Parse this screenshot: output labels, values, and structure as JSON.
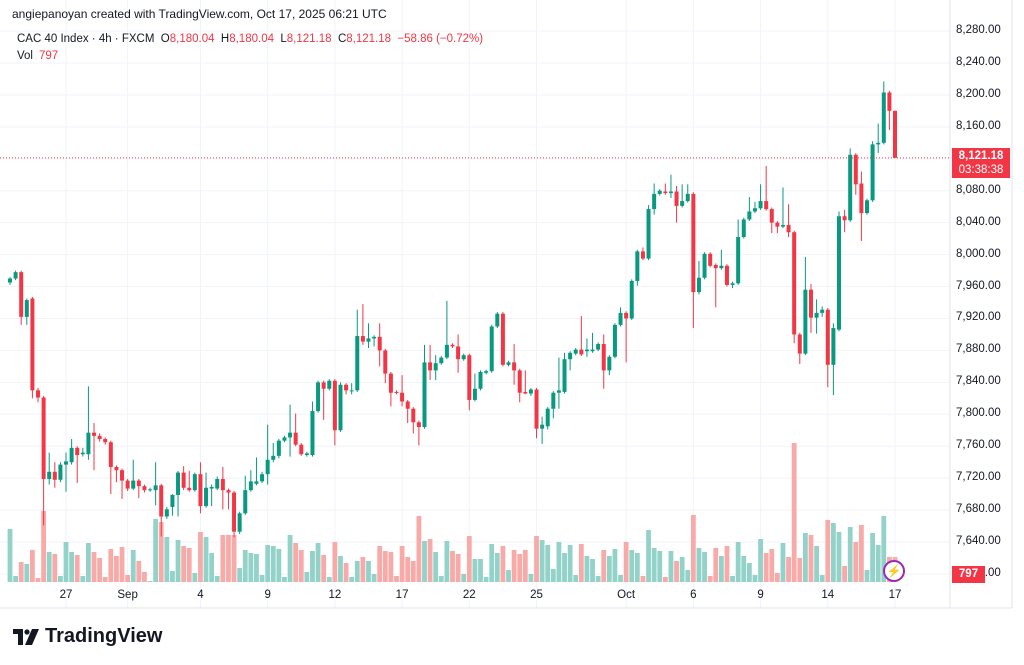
{
  "header": {
    "credit": "angiepanoyan created with TradingView.com, Oct 17, 2025 06:21 UTC",
    "symbol": "CAC 40 Index · 4h · FXCM",
    "o_label": "O",
    "o": "8,180.04",
    "h_label": "H",
    "h": "8,180.04",
    "l_label": "L",
    "l": "8,121.18",
    "c_label": "C",
    "c": "8,121.18",
    "change": "−58.86 (−0.72%)",
    "vol_label": "Vol",
    "vol": "797"
  },
  "price_label": {
    "price": "8,121.18",
    "countdown": "03:38:38"
  },
  "volume_label": "797",
  "logo_text": "TradingView",
  "colors": {
    "up": "#089981",
    "down": "#f23645",
    "up_vol": "#92d2c8",
    "down_vol": "#f8aaa8",
    "grid": "#f0f3fa"
  },
  "chart_data": {
    "type": "candlestick",
    "title": "CAC 40 Index · 4h · FXCM",
    "ylim": [
      7600,
      8280
    ],
    "y_ticks": [
      "8,280.00",
      "8,240.00",
      "8,200.00",
      "8,160.00",
      "8,120.00",
      "8,080.00",
      "8,040.00",
      "8,000.00",
      "7,960.00",
      "7,920.00",
      "7,880.00",
      "7,840.00",
      "7,800.00",
      "7,760.00",
      "7,720.00",
      "7,680.00",
      "7,640.00",
      "7,600.00"
    ],
    "y_tick_values": [
      8280,
      8240,
      8200,
      8160,
      8120,
      8080,
      8040,
      8000,
      7960,
      7920,
      7880,
      7840,
      7800,
      7760,
      7720,
      7680,
      7640,
      7600
    ],
    "x_ticks": [
      {
        "label": "27",
        "index": 10
      },
      {
        "label": "Sep",
        "index": 21
      },
      {
        "label": "4",
        "index": 34
      },
      {
        "label": "9",
        "index": 46
      },
      {
        "label": "12",
        "index": 58
      },
      {
        "label": "17",
        "index": 70
      },
      {
        "label": "22",
        "index": 82
      },
      {
        "label": "25",
        "index": 94
      },
      {
        "label": "Oct",
        "index": 110
      },
      {
        "label": "6",
        "index": 122
      },
      {
        "label": "9",
        "index": 134
      },
      {
        "label": "14",
        "index": 146
      },
      {
        "label": "17",
        "index": 158
      }
    ],
    "last_price": 8121.18,
    "columns": [
      "open",
      "high",
      "low",
      "close",
      "volume"
    ],
    "candles": [
      [
        7965,
        7972,
        7962,
        7970,
        1696
      ],
      [
        7970,
        7980,
        7968,
        7978,
        192
      ],
      [
        7978,
        7980,
        7912,
        7922,
        640
      ],
      [
        7922,
        7945,
        7912,
        7943,
        576
      ],
      [
        7945,
        7947,
        7820,
        7830,
        1024
      ],
      [
        7830,
        7833,
        7815,
        7821,
        128
      ],
      [
        7821,
        7823,
        7661,
        7719,
        2272
      ],
      [
        7719,
        7752,
        7712,
        7728,
        960
      ],
      [
        7728,
        7740,
        7708,
        7718,
        896
      ],
      [
        7718,
        7740,
        7715,
        7737,
        192
      ],
      [
        7737,
        7752,
        7703,
        7741,
        1280
      ],
      [
        7740,
        7769,
        7737,
        7758,
        960
      ],
      [
        7758,
        7760,
        7714,
        7749,
        864
      ],
      [
        7750,
        7758,
        7747,
        7752,
        192
      ],
      [
        7750,
        7835,
        7743,
        7777,
        1248
      ],
      [
        7777,
        7789,
        7730,
        7773,
        960
      ],
      [
        7773,
        7776,
        7766,
        7769,
        768
      ],
      [
        7769,
        7771,
        7762,
        7765,
        160
      ],
      [
        7765,
        7767,
        7700,
        7734,
        1056
      ],
      [
        7734,
        7736,
        7715,
        7730,
        832
      ],
      [
        7730,
        7732,
        7694,
        7717,
        1120
      ],
      [
        7717,
        7719,
        7704,
        7707,
        224
      ],
      [
        7707,
        7743,
        7705,
        7717,
        1024
      ],
      [
        7717,
        7719,
        7695,
        7710,
        672
      ],
      [
        7710,
        7712,
        7702,
        7705,
        320
      ],
      [
        7705,
        7708,
        7703,
        7706,
        32
      ],
      [
        7705,
        7740,
        7686,
        7711,
        2016
      ],
      [
        7711,
        7713,
        7647,
        7672,
        1920
      ],
      [
        7672,
        7684,
        7669,
        7681,
        1440
      ],
      [
        7684,
        7700,
        7673,
        7699,
        352
      ],
      [
        7699,
        7729,
        7672,
        7727,
        1344
      ],
      [
        7727,
        7735,
        7705,
        7708,
        1152
      ],
      [
        7708,
        7729,
        7703,
        7705,
        1088
      ],
      [
        7705,
        7727,
        7703,
        7725,
        288
      ],
      [
        7725,
        7740,
        7676,
        7685,
        1600
      ],
      [
        7685,
        7727,
        7683,
        7708,
        1440
      ],
      [
        7707,
        7712,
        7685,
        7709,
        928
      ],
      [
        7707,
        7722,
        7705,
        7719,
        192
      ],
      [
        7719,
        7734,
        7681,
        7705,
        1504
      ],
      [
        7705,
        7707,
        7681,
        7702,
        1504
      ],
      [
        7702,
        7704,
        7646,
        7653,
        1504
      ],
      [
        7653,
        7678,
        7650,
        7676,
        448
      ],
      [
        7676,
        7723,
        7674,
        7705,
        1024
      ],
      [
        7705,
        7730,
        7703,
        7716,
        928
      ],
      [
        7713,
        7746,
        7711,
        7716,
        896
      ],
      [
        7716,
        7728,
        7714,
        7725,
        224
      ],
      [
        7725,
        7787,
        7712,
        7743,
        1184
      ],
      [
        7743,
        7764,
        7740,
        7748,
        1152
      ],
      [
        7748,
        7769,
        7745,
        7767,
        1056
      ],
      [
        7767,
        7773,
        7765,
        7771,
        160
      ],
      [
        7771,
        7812,
        7747,
        7777,
        1504
      ],
      [
        7777,
        7801,
        7760,
        7762,
        1248
      ],
      [
        7762,
        7764,
        7748,
        7750,
        1024
      ],
      [
        7749,
        7753,
        7747,
        7751,
        320
      ],
      [
        7749,
        7816,
        7747,
        7804,
        992
      ],
      [
        7804,
        7842,
        7802,
        7840,
        1248
      ],
      [
        7840,
        7842,
        7793,
        7832,
        864
      ],
      [
        7832,
        7844,
        7830,
        7842,
        160
      ],
      [
        7842,
        7844,
        7761,
        7780,
        1280
      ],
      [
        7780,
        7840,
        7778,
        7837,
        832
      ],
      [
        7837,
        7839,
        7825,
        7830,
        608
      ],
      [
        7830,
        7839,
        7825,
        7830,
        160
      ],
      [
        7830,
        7931,
        7828,
        7898,
        672
      ],
      [
        7898,
        7938,
        7887,
        7891,
        800
      ],
      [
        7891,
        7914,
        7883,
        7895,
        672
      ],
      [
        7895,
        7899,
        7885,
        7897,
        256
      ],
      [
        7897,
        7914,
        7860,
        7880,
        1152
      ],
      [
        7880,
        7882,
        7839,
        7851,
        992
      ],
      [
        7851,
        7853,
        7810,
        7827,
        960
      ],
      [
        7828,
        7830,
        7825,
        7827,
        192
      ],
      [
        7827,
        7849,
        7810,
        7816,
        1152
      ],
      [
        7816,
        7818,
        7789,
        7807,
        800
      ],
      [
        7807,
        7809,
        7776,
        7790,
        672
      ],
      [
        7790,
        7792,
        7761,
        7784,
        2112
      ],
      [
        7784,
        7887,
        7782,
        7865,
        1312
      ],
      [
        7865,
        7887,
        7843,
        7855,
        1376
      ],
      [
        7855,
        7874,
        7843,
        7864,
        960
      ],
      [
        7864,
        7873,
        7862,
        7871,
        192
      ],
      [
        7871,
        7942,
        7869,
        7887,
        1312
      ],
      [
        7887,
        7889,
        7883,
        7885,
        992
      ],
      [
        7885,
        7900,
        7852,
        7869,
        896
      ],
      [
        7869,
        7876,
        7867,
        7874,
        256
      ],
      [
        7874,
        7876,
        7805,
        7818,
        1472
      ],
      [
        7818,
        7851,
        7816,
        7832,
        736
      ],
      [
        7832,
        7855,
        7830,
        7853,
        736
      ],
      [
        7852,
        7856,
        7850,
        7854,
        160
      ],
      [
        7854,
        7912,
        7852,
        7910,
        1216
      ],
      [
        7910,
        7928,
        7908,
        7926,
        928
      ],
      [
        7926,
        7928,
        7860,
        7862,
        1152
      ],
      [
        7862,
        7867,
        7860,
        7865,
        384
      ],
      [
        7865,
        7888,
        7837,
        7855,
        1024
      ],
      [
        7855,
        7857,
        7815,
        7827,
        896
      ],
      [
        7828,
        7855,
        7825,
        7826,
        1024
      ],
      [
        7826,
        7833,
        7823,
        7831,
        256
      ],
      [
        7831,
        7833,
        7770,
        7782,
        1472
      ],
      [
        7782,
        7797,
        7763,
        7787,
        1344
      ],
      [
        7785,
        7809,
        7781,
        7807,
        1184
      ],
      [
        7807,
        7829,
        7795,
        7827,
        416
      ],
      [
        7827,
        7871,
        7807,
        7830,
        1280
      ],
      [
        7828,
        7877,
        7826,
        7869,
        928
      ],
      [
        7869,
        7879,
        7855,
        7877,
        1184
      ],
      [
        7876,
        7883,
        7874,
        7881,
        224
      ],
      [
        7881,
        7923,
        7873,
        7875,
        1216
      ],
      [
        7879,
        7895,
        7872,
        7881,
        832
      ],
      [
        7879,
        7902,
        7877,
        7881,
        736
      ],
      [
        7881,
        7890,
        7879,
        7888,
        192
      ],
      [
        7888,
        7900,
        7832,
        7855,
        1024
      ],
      [
        7855,
        7874,
        7849,
        7872,
        832
      ],
      [
        7872,
        7914,
        7870,
        7912,
        1056
      ],
      [
        7912,
        7934,
        7910,
        7927,
        224
      ],
      [
        7927,
        7929,
        7865,
        7920,
        1280
      ],
      [
        7920,
        7969,
        7918,
        7967,
        1024
      ],
      [
        7967,
        8006,
        7961,
        8004,
        928
      ],
      [
        8004,
        8009,
        7993,
        7995,
        192
      ],
      [
        7995,
        8062,
        7993,
        8057,
        1664
      ],
      [
        8057,
        8089,
        8050,
        8076,
        1088
      ],
      [
        8076,
        8082,
        8074,
        8080,
        992
      ],
      [
        8079,
        8089,
        8075,
        8077,
        160
      ],
      [
        8077,
        8100,
        8071,
        8079,
        992
      ],
      [
        8079,
        8086,
        8040,
        8061,
        672
      ],
      [
        8061,
        8088,
        8059,
        8067,
        800
      ],
      [
        8067,
        8088,
        8065,
        8076,
        384
      ],
      [
        8076,
        8078,
        7908,
        7953,
        2144
      ],
      [
        7953,
        7992,
        7950,
        7971,
        1088
      ],
      [
        7971,
        8003,
        7969,
        8001,
        960
      ],
      [
        8001,
        8003,
        7984,
        7986,
        192
      ],
      [
        7987,
        7989,
        7934,
        7983,
        1088
      ],
      [
        7983,
        8006,
        7981,
        7986,
        832
      ],
      [
        7986,
        7988,
        7960,
        7962,
        1152
      ],
      [
        7962,
        7966,
        7958,
        7964,
        192
      ],
      [
        7964,
        8044,
        7962,
        8022,
        1280
      ],
      [
        8022,
        8046,
        8020,
        8044,
        832
      ],
      [
        8044,
        8072,
        8042,
        8054,
        608
      ],
      [
        8054,
        8066,
        8052,
        8058,
        224
      ],
      [
        8058,
        8088,
        8056,
        8067,
        1376
      ],
      [
        8067,
        8111,
        8055,
        8057,
        928
      ],
      [
        8057,
        8059,
        8027,
        8040,
        1056
      ],
      [
        8040,
        8042,
        8027,
        8035,
        288
      ],
      [
        8035,
        8084,
        8033,
        8037,
        1248
      ],
      [
        8037,
        8063,
        8022,
        8028,
        800
      ],
      [
        8028,
        8030,
        7889,
        7900,
        4448
      ],
      [
        7900,
        7902,
        7863,
        7876,
        768
      ],
      [
        7876,
        7997,
        7874,
        7956,
        1568
      ],
      [
        7956,
        7963,
        7902,
        7921,
        1504
      ],
      [
        7921,
        7944,
        7901,
        7927,
        1152
      ],
      [
        7927,
        7935,
        7922,
        7931,
        224
      ],
      [
        7931,
        7933,
        7834,
        7862,
        1984
      ],
      [
        7862,
        7914,
        7824,
        7908,
        1888
      ],
      [
        7906,
        8054,
        7904,
        8048,
        1600
      ],
      [
        8048,
        8056,
        8028,
        8043,
        512
      ],
      [
        8043,
        8133,
        8041,
        8125,
        1760
      ],
      [
        8125,
        8127,
        8075,
        8088,
        1280
      ],
      [
        8089,
        8104,
        8017,
        8052,
        1824
      ],
      [
        8052,
        8070,
        8050,
        8068,
        384
      ],
      [
        8068,
        8142,
        8066,
        8138,
        1568
      ],
      [
        8138,
        8164,
        8127,
        8140,
        1184
      ],
      [
        8140,
        8217,
        8138,
        8203,
        2112
      ],
      [
        8203,
        8205,
        8156,
        8180,
        800
      ],
      [
        8180.04,
        8180.04,
        8121.18,
        8121.18,
        797
      ]
    ]
  }
}
